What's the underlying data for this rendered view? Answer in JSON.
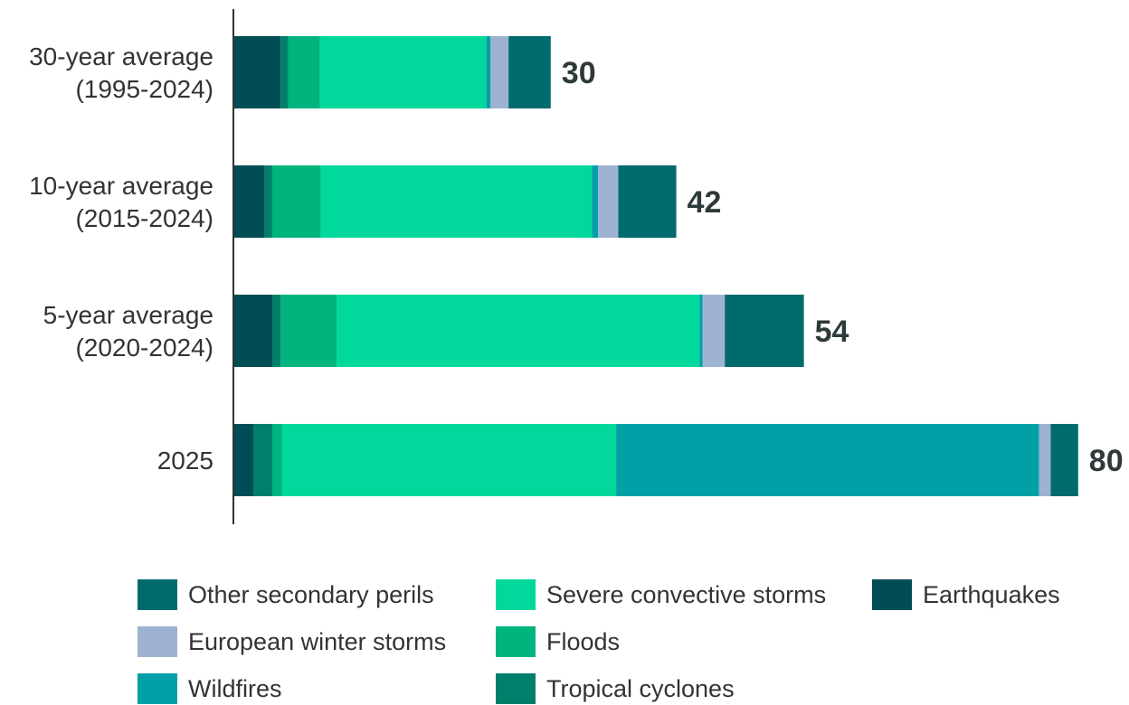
{
  "chart_data": {
    "type": "bar",
    "orientation": "horizontal",
    "stacked": true,
    "categories": [
      [
        "30-year average",
        "(1995-2024)"
      ],
      [
        "10-year average",
        "(2015-2024)"
      ],
      [
        "5-year average",
        "(2020-2024)"
      ],
      [
        "2025"
      ]
    ],
    "totals": [
      30,
      42,
      54,
      80
    ],
    "total_labels": [
      "30",
      "42",
      "54",
      "80"
    ],
    "xlim": [
      0,
      80
    ],
    "grid": false,
    "legend_position": "bottom",
    "series": [
      {
        "name": "Earthquakes",
        "color": "#004d55",
        "values": [
          4.4,
          2.9,
          3.6,
          1.8
        ]
      },
      {
        "name": "Tropical cyclones",
        "color": "#00806b",
        "values": [
          0.7,
          0.7,
          0.8,
          1.8
        ]
      },
      {
        "name": "Floods",
        "color": "#00b47d",
        "values": [
          3.0,
          4.6,
          5.3,
          0.9
        ]
      },
      {
        "name": "Severe convective storms",
        "color": "#00d89c",
        "values": [
          15.8,
          25.7,
          34.4,
          31.7
        ]
      },
      {
        "name": "Wildfires",
        "color": "#00a0a6",
        "values": [
          0.4,
          0.6,
          0.3,
          40.1
        ]
      },
      {
        "name": "European winter storms",
        "color": "#9eb3d2",
        "values": [
          1.7,
          1.9,
          2.1,
          1.1
        ]
      },
      {
        "name": "Other secondary perils",
        "color": "#006b6f",
        "values": [
          4.0,
          5.5,
          7.5,
          2.6
        ]
      }
    ]
  },
  "legend_columns": [
    [
      "Other secondary perils",
      "European winter storms",
      "Wildfires"
    ],
    [
      "Severe convective storms",
      "Floods",
      "Tropical cyclones"
    ],
    [
      "Earthquakes"
    ]
  ]
}
